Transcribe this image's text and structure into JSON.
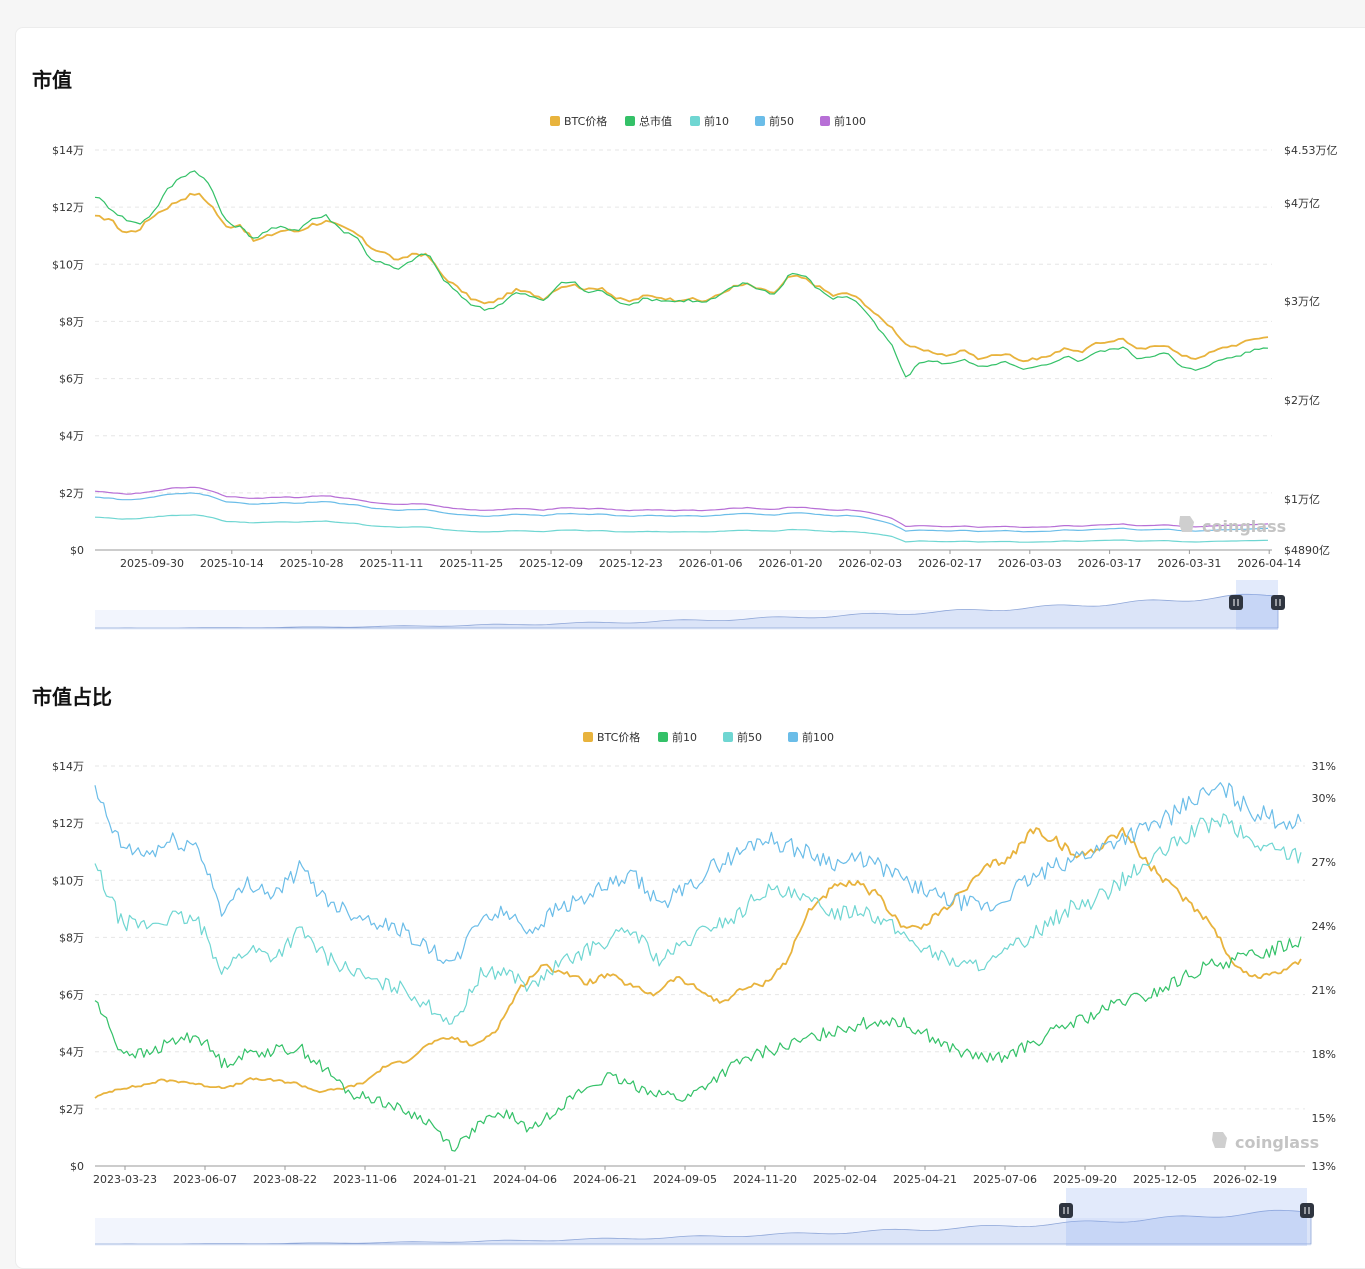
{
  "sections": [
    {
      "title": "市值"
    },
    {
      "title": "市值占比"
    }
  ],
  "watermark": "coinglass",
  "colors": {
    "btc": "#e8b33d",
    "total": "#34c168",
    "top10": "#6fd6d2",
    "top50": "#6bbde8",
    "top100": "#b76fd6",
    "grid": "#e6e6e6",
    "slider": "#d6e2fb"
  },
  "chart_data": [
    {
      "type": "line",
      "title": "",
      "legend": {
        "placement": "top-center",
        "items": [
          {
            "name": "BTC价格",
            "color": "#e8b33d"
          },
          {
            "name": "总市值",
            "color": "#34c168"
          },
          {
            "name": "前10",
            "color": "#6fd6d2"
          },
          {
            "name": "前50",
            "color": "#6bbde8"
          },
          {
            "name": "前100",
            "color": "#b76fd6"
          }
        ]
      },
      "y_left": {
        "ticks": [
          "$14万",
          "$12万",
          "$10万",
          "$8万",
          "$6万",
          "$4万",
          "$2万",
          "$0"
        ],
        "range": [
          0,
          140000
        ]
      },
      "y_right": {
        "ticks": [
          "$4.53万亿",
          "$4万亿",
          "$3万亿",
          "$2万亿",
          "$1万亿",
          "$4890亿"
        ]
      },
      "x_ticks": [
        "2025-09-30",
        "2025-10-14",
        "2025-10-28",
        "2025-11-11",
        "2025-11-25",
        "2025-12-09",
        "2025-12-23",
        "2026-01-06",
        "2026-01-20",
        "2026-02-03",
        "2026-02-17",
        "2026-03-03",
        "2026-03-17",
        "2026-03-31",
        "2026-04-14"
      ],
      "grid": true,
      "series": [
        {
          "name": "BTC价格",
          "values": [
            116500,
            116000,
            111000,
            112000,
            117000,
            120000,
            123000,
            125000,
            121000,
            113000,
            114000,
            108000,
            110000,
            112000,
            111500,
            114000,
            115000,
            113000,
            111000,
            106000,
            104000,
            101000,
            104000,
            103000,
            96000,
            92000,
            88000,
            86000,
            88000,
            91000,
            90000,
            88000,
            92000,
            93000,
            91000,
            92000,
            88000,
            87000,
            89000,
            88500,
            87500,
            88000,
            87000,
            89000,
            92000,
            93000,
            91000,
            90000,
            96000,
            95000,
            92000,
            89000,
            90000,
            87000,
            82000,
            78000,
            72000,
            70000,
            69000,
            68000,
            70000,
            67000,
            68000,
            69000,
            66000,
            67000,
            68000,
            71000,
            69000,
            72000,
            73000,
            74000,
            70000,
            71000,
            72000,
            68000,
            67000,
            69000,
            71000,
            72000,
            74000,
            74500
          ]
        },
        {
          "name": "总市值",
          "values": [
            124000,
            120000,
            116000,
            114000,
            118000,
            126000,
            131000,
            133000,
            127000,
            115000,
            113000,
            109000,
            112000,
            113000,
            112000,
            116000,
            117000,
            112000,
            110000,
            102000,
            100000,
            98000,
            102000,
            104000,
            95000,
            90000,
            86000,
            84000,
            86000,
            90000,
            89000,
            87000,
            93000,
            94000,
            90000,
            91000,
            87000,
            86000,
            88000,
            87500,
            87000,
            87500,
            86500,
            88500,
            92000,
            93500,
            91000,
            89500,
            97000,
            96000,
            91000,
            88000,
            89000,
            85000,
            78000,
            72000,
            60000,
            66000,
            66000,
            65000,
            67000,
            64000,
            64500,
            66000,
            63000,
            64000,
            65000,
            68000,
            66000,
            69000,
            70000,
            71000,
            67000,
            68000,
            69000,
            64000,
            63000,
            65000,
            67000,
            68000,
            70000,
            71000
          ]
        },
        {
          "name": "前10",
          "values": [
            11500,
            11200,
            10800,
            11000,
            11500,
            12000,
            12200,
            12300,
            11500,
            10000,
            9800,
            9500,
            9700,
            9900,
            9700,
            10000,
            10100,
            9600,
            9300,
            8500,
            8200,
            7900,
            8100,
            8000,
            7200,
            6800,
            6500,
            6300,
            6500,
            6800,
            6600,
            6400,
            6900,
            7000,
            6700,
            6800,
            6400,
            6300,
            6500,
            6400,
            6300,
            6400,
            6300,
            6500,
            6800,
            6900,
            6700,
            6600,
            7200,
            7100,
            6700,
            6400,
            6500,
            6200,
            5600,
            4800,
            2800,
            3200,
            3000,
            2900,
            3100,
            2800,
            2900,
            3000,
            2700,
            2800,
            2900,
            3200,
            3000,
            3300,
            3400,
            3500,
            3100,
            3200,
            3300,
            2900,
            2800,
            3000,
            3100,
            3200,
            3300,
            3400
          ]
        },
        {
          "name": "前50",
          "values": [
            18500,
            18200,
            17500,
            17800,
            18500,
            19500,
            19800,
            20000,
            18800,
            16800,
            16500,
            16000,
            16300,
            16600,
            16300,
            16800,
            17000,
            16200,
            15800,
            14700,
            14300,
            13900,
            14200,
            14100,
            13000,
            12500,
            12100,
            11800,
            12100,
            12500,
            12300,
            12000,
            12700,
            12800,
            12400,
            12600,
            12000,
            11800,
            12100,
            12000,
            11800,
            12000,
            11800,
            12100,
            12600,
            12800,
            12400,
            12200,
            13000,
            12900,
            12400,
            11900,
            12100,
            11600,
            10500,
            9200,
            6600,
            7000,
            6800,
            6600,
            6900,
            6500,
            6600,
            6800,
            6400,
            6500,
            6600,
            7100,
            6800,
            7200,
            7400,
            7600,
            7000,
            7100,
            7300,
            6800,
            6600,
            6900,
            7100,
            7200,
            7400,
            7600
          ]
        },
        {
          "name": "前100",
          "values": [
            20500,
            20200,
            19500,
            19800,
            20500,
            21500,
            21800,
            22000,
            20800,
            18800,
            18500,
            18000,
            18300,
            18600,
            18300,
            18800,
            19000,
            18200,
            17800,
            16700,
            16300,
            15900,
            16200,
            16100,
            15000,
            14500,
            14100,
            13800,
            14100,
            14500,
            14300,
            14000,
            14700,
            14800,
            14400,
            14600,
            14000,
            13800,
            14100,
            14000,
            13800,
            14000,
            13800,
            14100,
            14600,
            14800,
            14400,
            14200,
            15000,
            14900,
            14400,
            13900,
            14100,
            13600,
            12500,
            11200,
            8200,
            8500,
            8300,
            8100,
            8400,
            8000,
            8100,
            8300,
            7900,
            8000,
            8100,
            8600,
            8300,
            8700,
            8900,
            9100,
            8500,
            8600,
            8800,
            8300,
            8100,
            8400,
            8600,
            8700,
            8900,
            9100
          ]
        }
      ]
    },
    {
      "type": "line",
      "title": "",
      "legend": {
        "placement": "top-center",
        "items": [
          {
            "name": "BTC价格",
            "color": "#e8b33d"
          },
          {
            "name": "前10",
            "color": "#34c168"
          },
          {
            "name": "前50",
            "color": "#6fd6d2"
          },
          {
            "name": "前100",
            "color": "#6bbde8"
          }
        ]
      },
      "y_left": {
        "ticks": [
          "$14万",
          "$12万",
          "$10万",
          "$8万",
          "$6万",
          "$4万",
          "$2万",
          "$0"
        ],
        "range": [
          0,
          140000
        ]
      },
      "y_right": {
        "ticks": [
          "31%",
          "30%",
          "27%",
          "24%",
          "21%",
          "18%",
          "15%",
          "13%"
        ],
        "range": [
          13,
          31
        ]
      },
      "x_ticks": [
        "2023-03-23",
        "2023-06-07",
        "2023-08-22",
        "2023-11-06",
        "2024-01-21",
        "2024-04-06",
        "2024-06-21",
        "2024-09-05",
        "2024-11-20",
        "2025-02-04",
        "2025-04-21",
        "2025-07-06",
        "2025-09-20",
        "2025-12-05",
        "2026-02-19"
      ],
      "grid": true,
      "series": [
        {
          "name": "BTC价格",
          "values": [
            24000,
            27000,
            28000,
            30000,
            29500,
            28000,
            27500,
            30500,
            30000,
            29000,
            26000,
            27000,
            29000,
            35000,
            37000,
            43000,
            45000,
            42000,
            48000,
            62000,
            70000,
            68000,
            64000,
            67000,
            63000,
            60000,
            66000,
            62000,
            57000,
            62000,
            64000,
            72000,
            90000,
            97000,
            99000,
            95000,
            85000,
            83000,
            90000,
            97000,
            105000,
            108000,
            118000,
            114000,
            108000,
            112000,
            118000,
            107000,
            99000,
            92000,
            85000,
            70000,
            66000,
            68000,
            72000
          ]
        },
        {
          "name": "前10",
          "values": [
            20.5,
            18.2,
            18.0,
            18.6,
            18.9,
            17.6,
            18.1,
            18.2,
            18.3,
            17.3,
            16.2,
            16.0,
            15.5,
            15.0,
            13.8,
            14.9,
            15.4,
            14.6,
            15.6,
            16.4,
            17.0,
            16.6,
            16.3,
            16.0,
            16.8,
            17.6,
            18.1,
            18.4,
            18.8,
            19.2,
            19.4,
            19.6,
            19.2,
            18.5,
            18.0,
            17.8,
            18.2,
            18.8,
            19.4,
            19.8,
            20.4,
            20.6,
            21.2,
            21.8,
            22.2,
            22.4,
            22.8,
            23.2
          ]
        },
        {
          "name": "前50",
          "values": [
            26.5,
            24.0,
            23.8,
            24.2,
            24.0,
            21.8,
            22.8,
            22.4,
            23.6,
            22.4,
            21.8,
            21.2,
            21.0,
            20.2,
            19.4,
            21.6,
            21.8,
            21.0,
            22.0,
            22.6,
            23.2,
            23.6,
            22.2,
            23.0,
            23.8,
            24.2,
            25.4,
            25.2,
            24.8,
            24.4,
            24.6,
            23.8,
            23.0,
            22.4,
            22.0,
            22.2,
            23.0,
            23.8,
            24.6,
            25.0,
            25.8,
            26.6,
            27.4,
            28.2,
            28.6,
            27.6,
            27.2,
            27.0
          ]
        },
        {
          "name": "前100",
          "values": [
            29.8,
            27.4,
            27.0,
            27.6,
            27.4,
            24.4,
            25.8,
            25.2,
            26.4,
            25.0,
            24.4,
            24.0,
            23.6,
            22.8,
            22.0,
            24.2,
            24.4,
            23.6,
            24.6,
            25.0,
            25.6,
            26.0,
            24.8,
            25.4,
            26.4,
            27.0,
            27.8,
            27.4,
            27.0,
            26.6,
            26.8,
            26.2,
            25.6,
            25.0,
            24.8,
            24.6,
            25.6,
            26.2,
            26.8,
            27.2,
            27.8,
            28.2,
            28.8,
            29.6,
            30.0,
            29.0,
            28.6,
            28.4
          ]
        }
      ]
    }
  ]
}
